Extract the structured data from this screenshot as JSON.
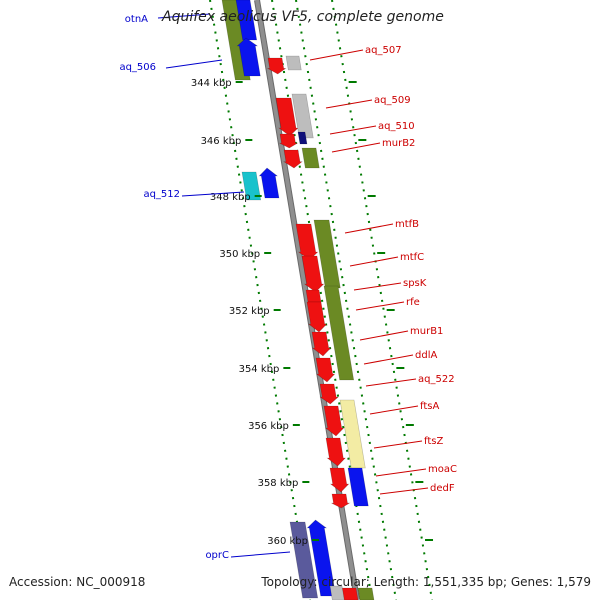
{
  "title": "Aquifex aeolicus VF5, complete genome",
  "footer": {
    "accession": "Accession: NC_000918",
    "summary": "Topology: circular; Length: 1,551,335 bp; Genes: 1,579"
  },
  "colors": {
    "label_left": "#0000cc",
    "label_right": "#cc0000",
    "backbone": "#8f8f8f",
    "tick": "#007a00",
    "red": "#ee1111",
    "olive": "#6b8a24",
    "blue": "#0a14ee",
    "cyan": "#19c2cc",
    "gray": "#bdbdbd",
    "pale_yellow": "#f3eca4",
    "navy": "#10107a",
    "slate": "#5a5a9c"
  },
  "ticks": [
    "344 kbp",
    "346 kbp",
    "348 kbp",
    "350 kbp",
    "352 kbp",
    "354 kbp",
    "356 kbp",
    "358 kbp",
    "360 kbp"
  ],
  "genes_left": [
    "otnA",
    "aq_506",
    "aq_512",
    "oprC"
  ],
  "genes_right": [
    "aq_507",
    "aq_509",
    "aq_510",
    "murB2",
    "mtfB",
    "mtfC",
    "spsK",
    "rfe",
    "murB1",
    "ddlA",
    "aq_522",
    "ftsA",
    "ftsZ",
    "moaC",
    "dedF"
  ]
}
